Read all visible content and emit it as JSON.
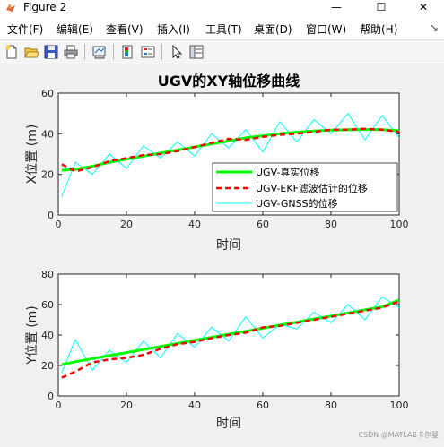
{
  "window": {
    "title": "Figure 2",
    "minimize_glyph": "—",
    "maximize_glyph": "☐",
    "close_glyph": "✕"
  },
  "menu": {
    "items": [
      "文件(F)",
      "编辑(E)",
      "查看(V)",
      "插入(I)",
      "工具(T)",
      "桌面(D)",
      "窗口(W)",
      "帮助(H)"
    ],
    "overflow_glyph": "↘"
  },
  "toolbar": {
    "icons": [
      "new-figure-icon",
      "open-file-icon",
      "save-icon",
      "print-icon",
      "link-plot-icon",
      "colorbar-icon",
      "legend-icon",
      "select-arrow-icon",
      "property-inspector-icon"
    ]
  },
  "colors": {
    "true": "#00ff00",
    "ekf": "#ff0000",
    "gnss": "#00ffff"
  },
  "chart_data": [
    {
      "type": "line",
      "title": "UGV的XY轴位移曲线",
      "xlabel": "时间",
      "ylabel": "X位置 (m)",
      "xlim": [
        0,
        100
      ],
      "ylim": [
        0,
        60
      ],
      "xticks": [
        0,
        20,
        40,
        60,
        80,
        100
      ],
      "yticks": [
        0,
        20,
        40,
        60
      ],
      "grid": false,
      "legend_position": "lower-right",
      "x": [
        1,
        5,
        10,
        15,
        20,
        25,
        30,
        35,
        40,
        45,
        50,
        55,
        60,
        65,
        70,
        75,
        80,
        85,
        90,
        95,
        100
      ],
      "series": [
        {
          "name": "UGV-真实位移",
          "style": "solid-thick",
          "values": [
            22,
            22.5,
            24,
            26,
            27.5,
            29,
            30.5,
            32,
            33.5,
            35,
            36.5,
            38,
            39,
            40,
            40.8,
            41.4,
            41.8,
            42,
            42.1,
            42,
            41.5
          ]
        },
        {
          "name": "UGV-EKF滤波估计的位移",
          "style": "dashed",
          "values": [
            25,
            21.5,
            23.5,
            26.5,
            28,
            29.5,
            30,
            31.5,
            33.5,
            35.5,
            37.5,
            37,
            38.5,
            39.5,
            40,
            41,
            42,
            42,
            42.5,
            42,
            41
          ]
        },
        {
          "name": "UGV-GNSS的位移",
          "style": "thin",
          "values": [
            9,
            26,
            20,
            30,
            23,
            34,
            28,
            36,
            29,
            40,
            33,
            42,
            31,
            46,
            36,
            47,
            40,
            50,
            37,
            49,
            38
          ]
        }
      ]
    },
    {
      "type": "line",
      "title": "",
      "xlabel": "时间",
      "ylabel": "Y位置 (m)",
      "xlim": [
        0,
        100
      ],
      "ylim": [
        0,
        80
      ],
      "xticks": [
        0,
        20,
        40,
        60,
        80,
        100
      ],
      "yticks": [
        0,
        20,
        40,
        60,
        80
      ],
      "grid": false,
      "x": [
        1,
        5,
        10,
        15,
        20,
        25,
        30,
        35,
        40,
        45,
        50,
        55,
        60,
        65,
        70,
        75,
        80,
        85,
        90,
        95,
        100
      ],
      "series": [
        {
          "name": "UGV-真实位移",
          "style": "solid-thick",
          "values": [
            20.5,
            22.5,
            24.5,
            26.5,
            28.5,
            30.5,
            32.5,
            34.5,
            36.5,
            38.5,
            40.5,
            42.5,
            44.5,
            46.5,
            48.5,
            50.5,
            52.5,
            54.5,
            56.5,
            58.5,
            63
          ]
        },
        {
          "name": "UGV-EKF滤波估计的位移",
          "style": "dashed",
          "values": [
            12,
            16,
            22,
            24,
            25,
            27,
            31,
            34,
            35.5,
            38,
            40,
            41.5,
            45,
            46,
            48,
            50,
            52,
            54,
            56,
            58,
            62
          ]
        },
        {
          "name": "UGV-GNSS的位移",
          "style": "thin",
          "values": [
            15,
            37,
            17,
            30,
            22,
            36,
            25,
            41,
            32,
            45,
            36,
            52,
            38,
            47,
            44,
            55,
            48,
            60,
            50,
            65,
            58
          ]
        }
      ]
    }
  ],
  "watermark": "CSDN @MATLAB卡尔曼"
}
